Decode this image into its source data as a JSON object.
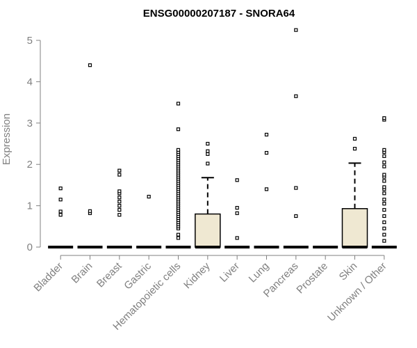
{
  "chart_data": {
    "type": "boxplot",
    "title": "ENSG00000207187 - SNORA64",
    "xlabel": "",
    "ylabel": "Expression",
    "ylim": [
      0,
      5.25
    ],
    "yticks": [
      0,
      1,
      2,
      3,
      4,
      5
    ],
    "grid": false,
    "legend": "none",
    "box_fill": "#efe8d2",
    "categories": [
      "Bladder",
      "Brain",
      "Breast",
      "Gastric",
      "Hematopoietic cells",
      "Kidney",
      "Liver",
      "Lung",
      "Pancreas",
      "Prostate",
      "Skin",
      "Unknown / Other"
    ],
    "boxes": [
      {
        "category": "Bladder",
        "min": 0,
        "q1": 0,
        "median": 0,
        "q3": 0,
        "max": 0,
        "outliers": [
          0.78,
          0.86,
          1.15,
          1.42
        ]
      },
      {
        "category": "Brain",
        "min": 0,
        "q1": 0,
        "median": 0,
        "q3": 0,
        "max": 0,
        "outliers": [
          0.82,
          0.87,
          4.4
        ]
      },
      {
        "category": "Breast",
        "min": 0,
        "q1": 0,
        "median": 0,
        "q3": 0,
        "max": 0,
        "outliers": [
          0.78,
          0.9,
          1.0,
          1.1,
          1.2,
          1.3,
          1.35,
          1.75,
          1.85
        ]
      },
      {
        "category": "Gastric",
        "min": 0,
        "q1": 0,
        "median": 0,
        "q3": 0,
        "max": 0,
        "outliers": [
          1.22
        ]
      },
      {
        "category": "Hematopoietic cells",
        "min": 0,
        "q1": 0,
        "median": 0,
        "q3": 0,
        "max": 0,
        "outliers": [
          0.22,
          0.3,
          0.45,
          0.5,
          0.55,
          0.6,
          0.65,
          0.7,
          0.75,
          0.8,
          0.85,
          0.9,
          0.95,
          1.0,
          1.05,
          1.1,
          1.15,
          1.2,
          1.25,
          1.3,
          1.35,
          1.4,
          1.45,
          1.5,
          1.55,
          1.6,
          1.65,
          1.7,
          1.75,
          1.8,
          1.85,
          1.9,
          1.95,
          2.0,
          2.05,
          2.1,
          2.15,
          2.2,
          2.25,
          2.3,
          2.35,
          2.85,
          3.47
        ]
      },
      {
        "category": "Kidney",
        "min": 0,
        "q1": 0,
        "median": 0,
        "q3": 0.8,
        "max": 1.68,
        "outliers": [
          2.02,
          2.25,
          2.32,
          2.5
        ]
      },
      {
        "category": "Liver",
        "min": 0,
        "q1": 0,
        "median": 0,
        "q3": 0,
        "max": 0,
        "outliers": [
          0.22,
          0.82,
          0.95,
          1.62
        ]
      },
      {
        "category": "Lung",
        "min": 0,
        "q1": 0,
        "median": 0,
        "q3": 0,
        "max": 0,
        "outliers": [
          1.4,
          2.28,
          2.72
        ]
      },
      {
        "category": "Pancreas",
        "min": 0,
        "q1": 0,
        "median": 0,
        "q3": 0,
        "max": 0,
        "outliers": [
          0.75,
          1.43,
          3.65,
          5.25
        ]
      },
      {
        "category": "Prostate",
        "min": 0,
        "q1": 0,
        "median": 0,
        "q3": 0,
        "max": 0,
        "outliers": []
      },
      {
        "category": "Skin",
        "min": 0,
        "q1": 0,
        "median": 0,
        "q3": 0.93,
        "max": 2.03,
        "outliers": [
          2.38,
          2.62
        ]
      },
      {
        "category": "Unknown / Other",
        "min": 0,
        "q1": 0,
        "median": 0,
        "q3": 0,
        "max": 0,
        "outliers": [
          0.15,
          0.3,
          0.45,
          0.6,
          0.75,
          0.9,
          1.05,
          1.15,
          1.3,
          1.4,
          1.45,
          1.6,
          1.7,
          1.75,
          1.95,
          2.05,
          2.2,
          2.3,
          2.35,
          3.08,
          3.12
        ]
      }
    ]
  }
}
